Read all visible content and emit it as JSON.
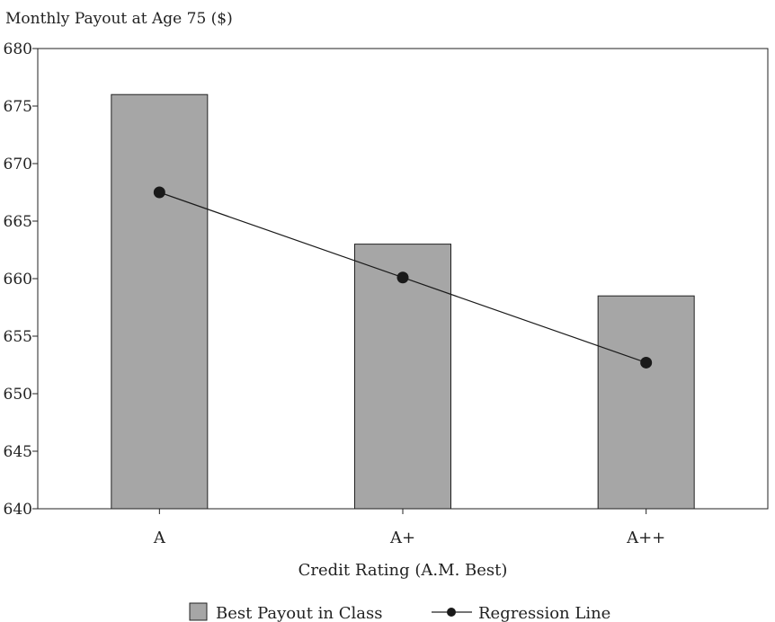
{
  "chart_data": {
    "type": "bar",
    "ylabel": "Monthly Payout at Age 75 ($)",
    "xlabel": "Credit Rating (A.M. Best)",
    "categories": [
      "A",
      "A+",
      "A++"
    ],
    "ylim": [
      640,
      680
    ],
    "yticks": [
      640,
      645,
      650,
      655,
      660,
      665,
      670,
      675,
      680
    ],
    "series": [
      {
        "name": "Best Payout in Class",
        "kind": "bar",
        "values": [
          676,
          663,
          658.5
        ],
        "color": "#a6a6a6"
      },
      {
        "name": "Regression Line",
        "kind": "line",
        "values": [
          667.5,
          660.1,
          652.7
        ],
        "color": "#1a1a1a"
      }
    ],
    "grid": false,
    "legend_position": "bottom-center"
  }
}
